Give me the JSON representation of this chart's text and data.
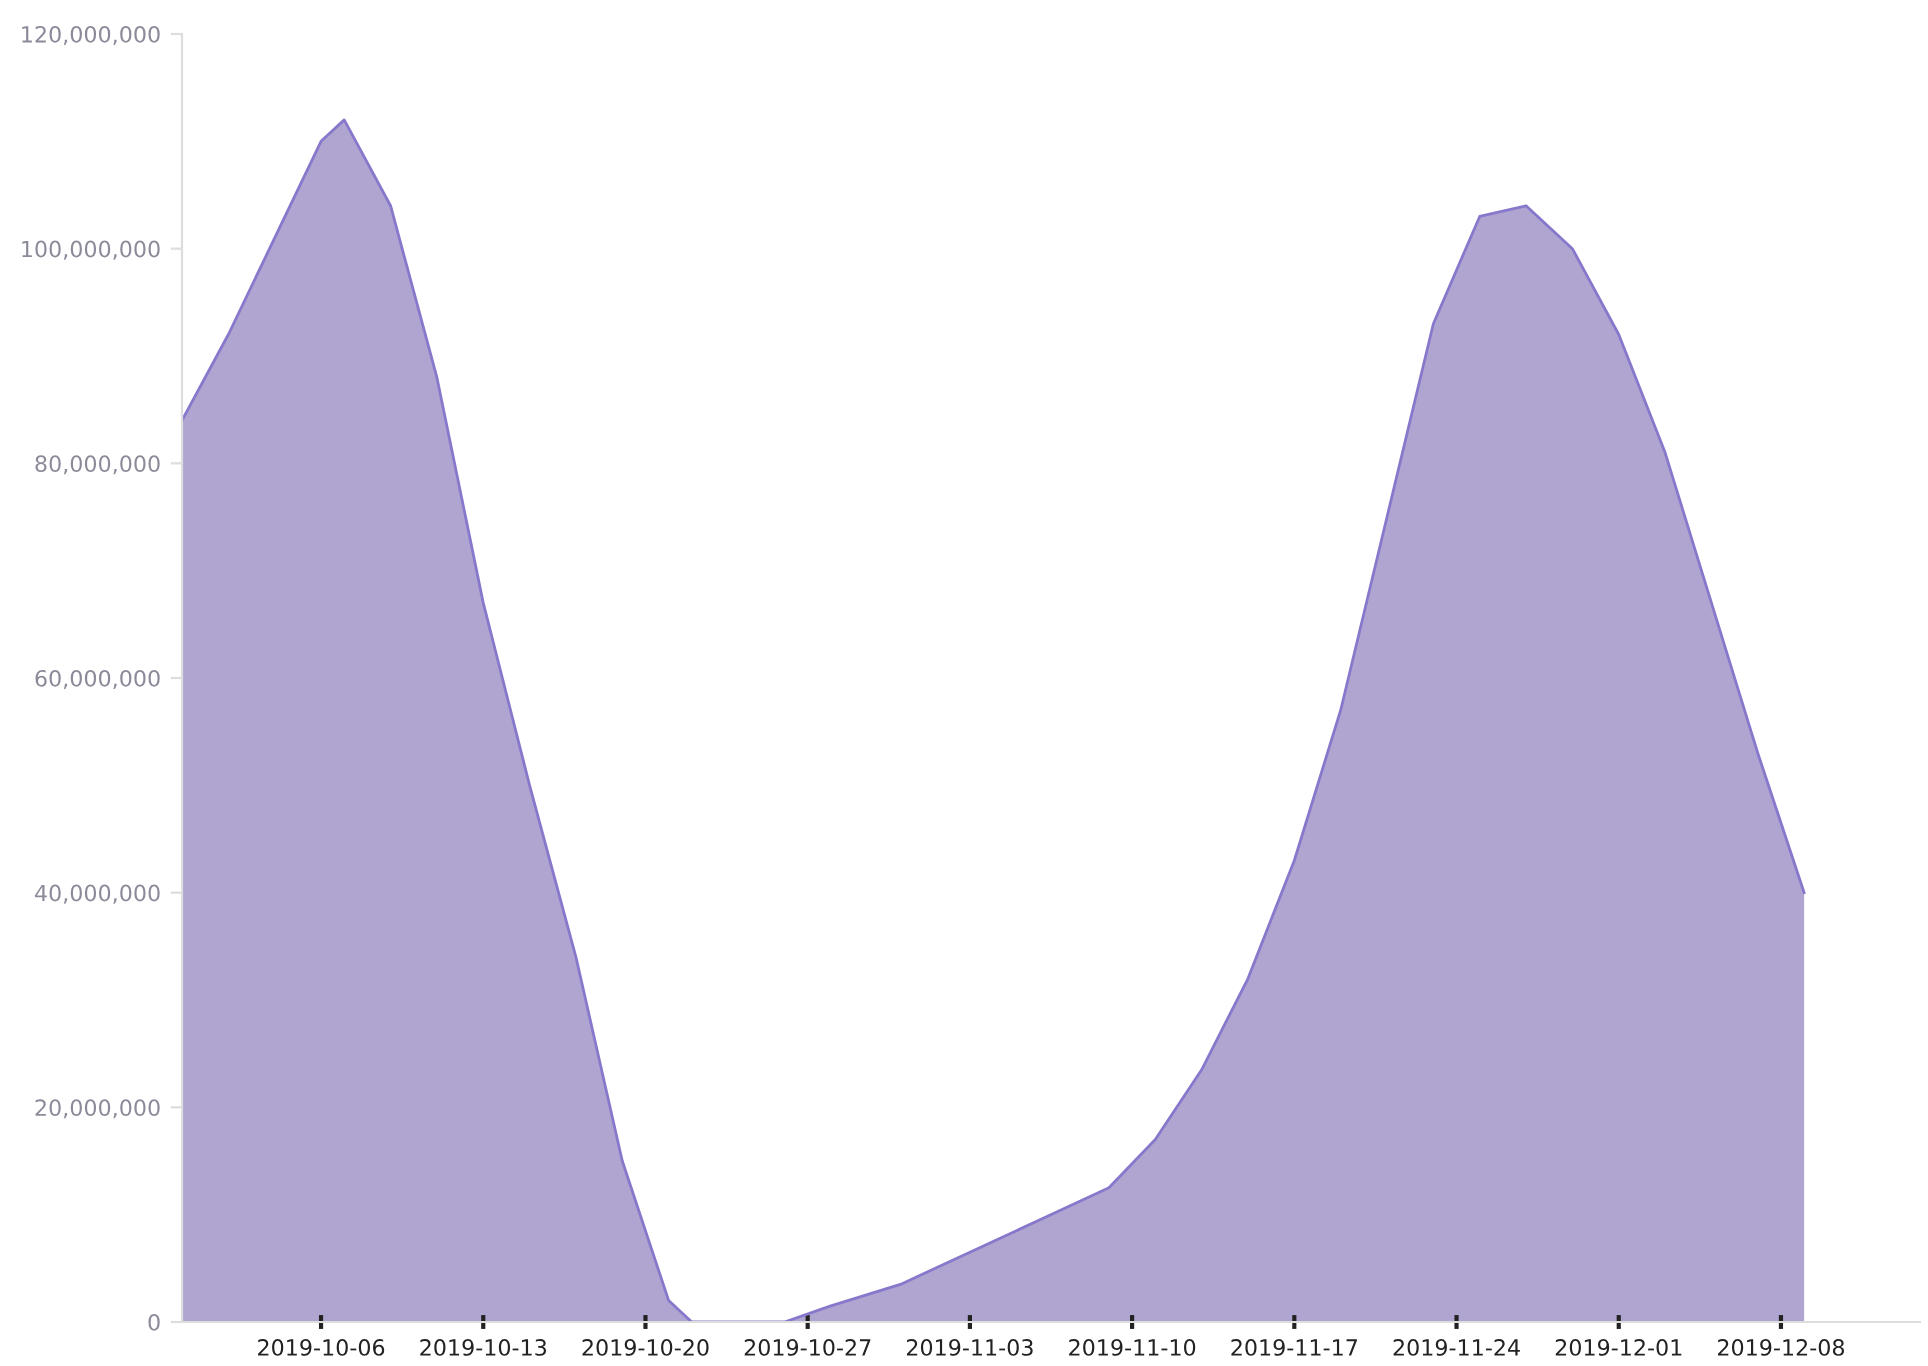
{
  "chart_data": {
    "type": "area",
    "x": [
      "2019-09-30",
      "2019-10-02",
      "2019-10-04",
      "2019-10-06",
      "2019-10-07",
      "2019-10-09",
      "2019-10-11",
      "2019-10-13",
      "2019-10-15",
      "2019-10-17",
      "2019-10-19",
      "2019-10-21",
      "2019-10-22",
      "2019-10-26",
      "2019-10-28",
      "2019-10-31",
      "2019-11-03",
      "2019-11-06",
      "2019-11-09",
      "2019-11-11",
      "2019-11-13",
      "2019-11-15",
      "2019-11-17",
      "2019-11-19",
      "2019-11-21",
      "2019-11-23",
      "2019-11-25",
      "2019-11-27",
      "2019-11-29",
      "2019-12-01",
      "2019-12-03",
      "2019-12-05",
      "2019-12-07",
      "2019-12-09"
    ],
    "series": [
      {
        "color": "#b0a4d0",
        "values": [
          84000000,
          92000000,
          101000000,
          110000000,
          112000000,
          104000000,
          88000000,
          67000000,
          50000000,
          34000000,
          15000000,
          2000000,
          0,
          0,
          1500000,
          3500000,
          6500000,
          9500000,
          12500000,
          17000000,
          23500000,
          32000000,
          43000000,
          57000000,
          75000000,
          93000000,
          103000000,
          104000000,
          100000000,
          92000000,
          81000000,
          67000000,
          53000000,
          40000000
        ]
      }
    ],
    "xlim": [
      "2019-09-30",
      "2019-12-14"
    ],
    "xticks": [
      {
        "value": "2019-10-06",
        "label": "2019-10-06"
      },
      {
        "value": "2019-10-13",
        "label": "2019-10-13"
      },
      {
        "value": "2019-10-20",
        "label": "2019-10-20"
      },
      {
        "value": "2019-10-27",
        "label": "2019-10-27"
      },
      {
        "value": "2019-11-03",
        "label": "2019-11-03"
      },
      {
        "value": "2019-11-10",
        "label": "2019-11-10"
      },
      {
        "value": "2019-11-17",
        "label": "2019-11-17"
      },
      {
        "value": "2019-11-24",
        "label": "2019-11-24"
      },
      {
        "value": "2019-12-01",
        "label": "2019-12-01"
      },
      {
        "value": "2019-12-08",
        "label": "2019-12-08"
      }
    ],
    "ylim": [
      0,
      120000000
    ],
    "yticks": [
      {
        "value": 0,
        "label": "0"
      },
      {
        "value": 20000000,
        "label": "20,000,000"
      },
      {
        "value": 40000000,
        "label": "40,000,000"
      },
      {
        "value": 60000000,
        "label": "60,000,000"
      },
      {
        "value": 80000000,
        "label": "80,000,000"
      },
      {
        "value": 100000000,
        "label": "100,000,000"
      },
      {
        "value": 120000000,
        "label": "120,000,000"
      }
    ],
    "grid": false,
    "legend": false
  }
}
